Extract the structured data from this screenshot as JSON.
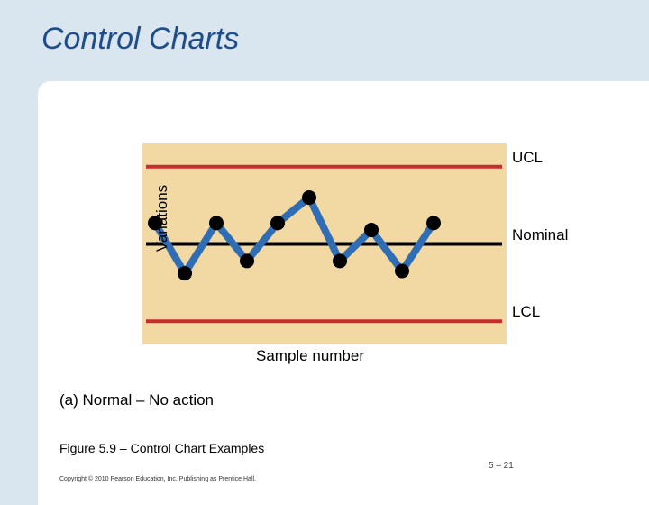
{
  "slide": {
    "title": "Control Charts",
    "subcaption": "(a) Normal – No action",
    "figure_caption": "Figure 5.9 –  Control Chart Examples",
    "page_number": "5 – 21",
    "copyright": "Copyright © 2010 Pearson Education, Inc. Publishing as Prentice Hall."
  },
  "colors": {
    "background": "#d9e5ef",
    "plot_area": "#f2d8a3",
    "limit_line": "#c62d2d",
    "nominal_line": "#000000",
    "series_line": "#2f6db5",
    "marker": "#000000",
    "title": "#1e4d8c"
  },
  "chart_data": {
    "type": "line",
    "xlabel": "Sample number",
    "ylabel": "Variations",
    "ylim": [
      -1.3,
      1.3
    ],
    "limits": [
      {
        "label": "UCL",
        "value": 1
      },
      {
        "label": "Nominal",
        "value": 0
      },
      {
        "label": "LCL",
        "value": -1
      }
    ],
    "series": [
      {
        "x": [
          1,
          2,
          3,
          4,
          5,
          6,
          7,
          8,
          9,
          10
        ],
        "values": [
          0.27,
          -0.38,
          0.27,
          -0.22,
          0.27,
          0.6,
          -0.22,
          0.18,
          -0.35,
          0.27
        ]
      }
    ]
  }
}
